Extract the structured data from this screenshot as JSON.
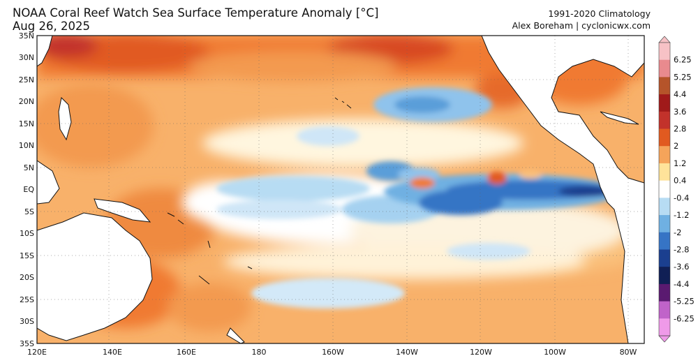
{
  "header": {
    "title": "NOAA Coral Reef Watch Sea Surface Temperature Anomaly [°C]",
    "date": "Aug 26, 2025",
    "climatology": "1991-2020 Climatology",
    "credit": "Alex Boreham | cyclonicwx.com"
  },
  "axes": {
    "lat_labels": [
      "35N",
      "30N",
      "25N",
      "20N",
      "15N",
      "10N",
      "5N",
      "EQ",
      "5S",
      "10S",
      "15S",
      "20S",
      "25S",
      "30S",
      "35S"
    ],
    "lon_labels": [
      "120E",
      "140E",
      "160E",
      "180",
      "160W",
      "140W",
      "120W",
      "100W",
      "80W"
    ]
  },
  "colorbar": {
    "labels": [
      "6.25",
      "5.25",
      "4.4",
      "3.6",
      "2.8",
      "2",
      "1.2",
      "0.4",
      "-0.4",
      "-1.2",
      "-2",
      "-2.8",
      "-3.6",
      "-4.4",
      "-5.25",
      "-6.25"
    ],
    "colors": [
      "#f7c2c6",
      "#e98a8e",
      "#b5542a",
      "#a01a1a",
      "#c2322b",
      "#e15a20",
      "#f5a45a",
      "#ffe39a",
      "#ffffff",
      "#b7dcf3",
      "#6fb0e2",
      "#3674c5",
      "#1b3f8f",
      "#101f55",
      "#5a1a70",
      "#c063c9",
      "#ef9ae9"
    ]
  },
  "map": {
    "lat_range": [
      -35,
      35
    ],
    "lon_range": [
      120,
      284
    ],
    "features": {
      "warm_north_band": "SST anomaly +1.2 to +3.6 °C",
      "cold_tongue": "Equatorial Pacific SST anomaly -0.4 to -2.8 °C"
    }
  }
}
